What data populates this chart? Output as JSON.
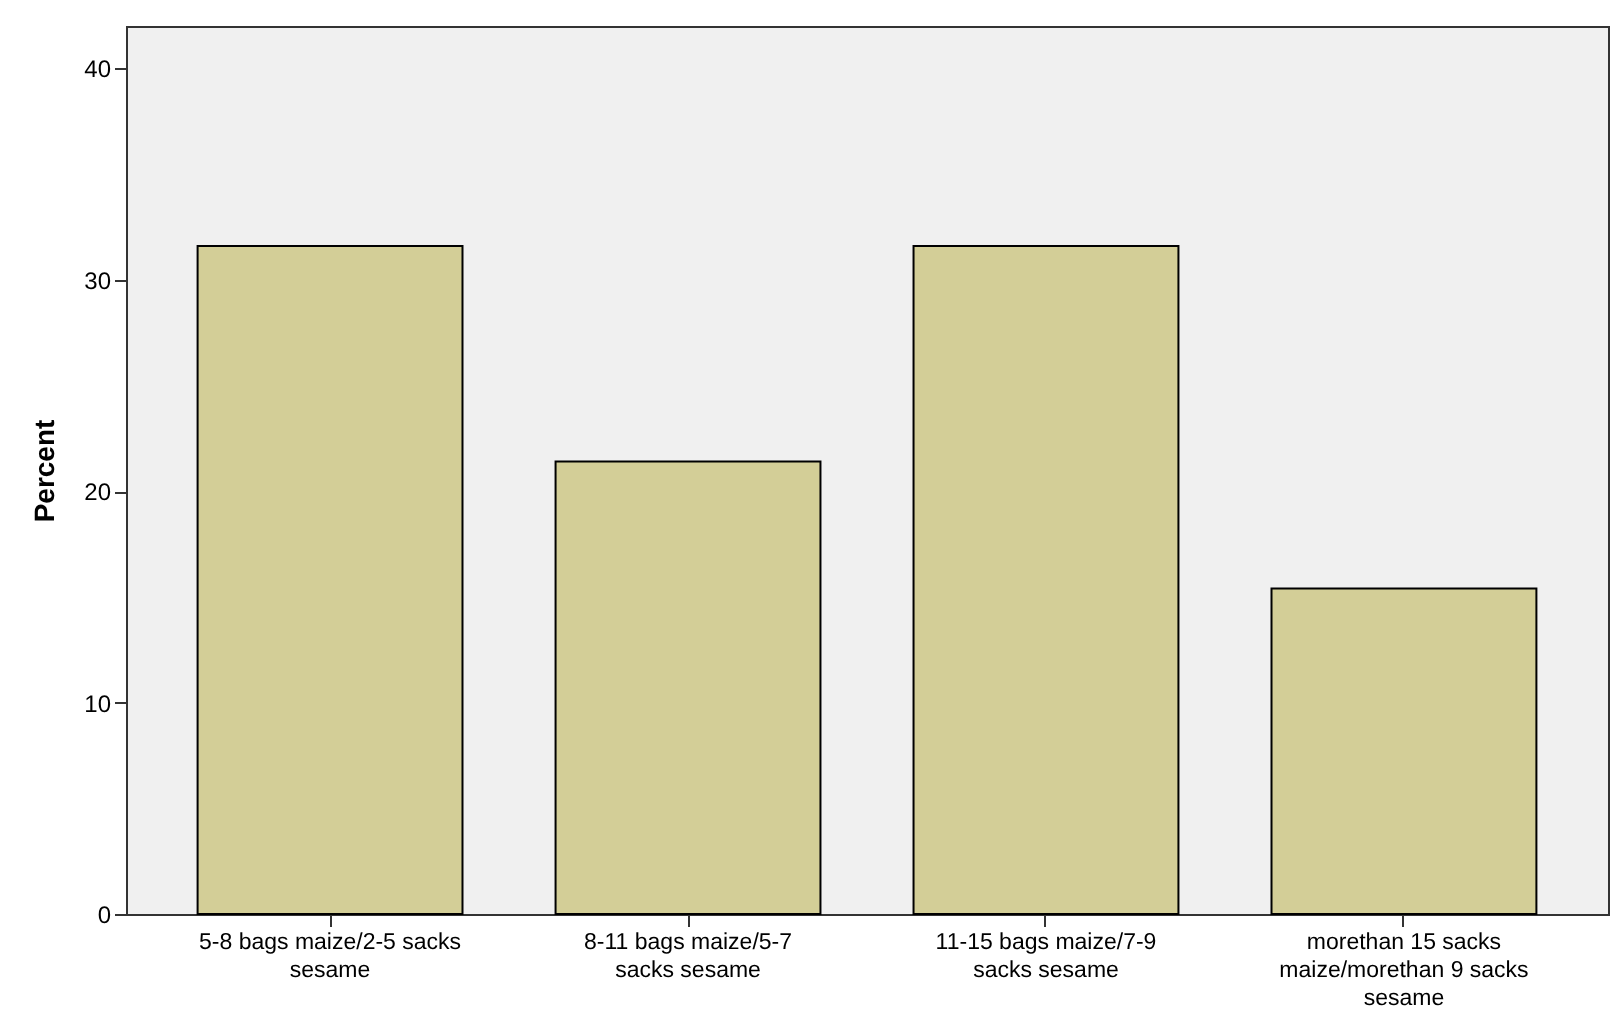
{
  "chart_data": {
    "type": "bar",
    "ylabel": "Percent",
    "categories": [
      "5-8 bags maize/2-5 sacks sesame",
      "8-11 bags maize/5-7 sacks sesame",
      "11-15 bags maize/7-9 sacks sesame",
      "morethan 15 sacks maize/morethan 9 sacks sesame"
    ],
    "values": [
      31.6,
      21.4,
      31.6,
      15.4
    ],
    "color": "#d3ce97",
    "ylim": [
      0,
      42
    ],
    "yticks": [
      0,
      10,
      20,
      30,
      40
    ],
    "grid": false
  }
}
